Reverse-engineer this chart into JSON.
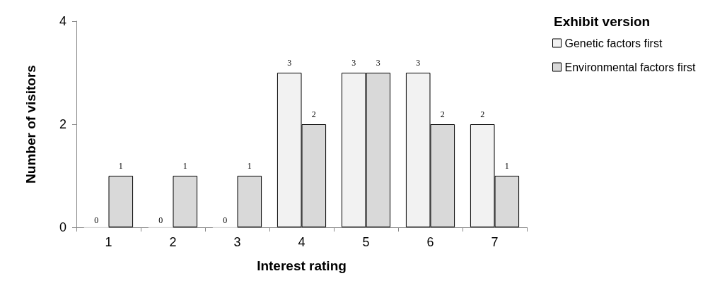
{
  "chart_data": {
    "type": "bar",
    "xlabel": "Interest rating",
    "ylabel": "Number of visitors",
    "legend_title": "Exhibit version",
    "categories": [
      "1",
      "2",
      "3",
      "4",
      "5",
      "6",
      "7"
    ],
    "series": [
      {
        "name": "Genetic factors first",
        "color": "#f2f2f2",
        "values": [
          0,
          0,
          0,
          3,
          3,
          3,
          2
        ]
      },
      {
        "name": "Environmental factors first",
        "color": "#d9d9d9",
        "values": [
          1,
          1,
          1,
          2,
          3,
          2,
          1
        ]
      }
    ],
    "ylim": [
      0,
      4
    ],
    "yticks": [
      0,
      2,
      4
    ],
    "grid": false,
    "legend": "top right",
    "data_labels": true
  }
}
